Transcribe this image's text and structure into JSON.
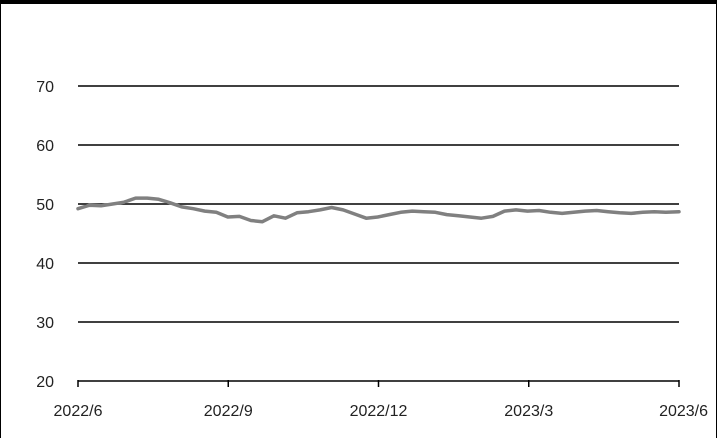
{
  "chart_data": {
    "type": "line",
    "title": "",
    "xlabel": "",
    "ylabel": "",
    "ylim": [
      20,
      75
    ],
    "yticks": [
      20,
      30,
      40,
      50,
      60,
      70
    ],
    "xticks": [
      "2022/6",
      "2022/9",
      "2022/12",
      "2023/3",
      "2023/6"
    ],
    "xlim": [
      "2022-06-01",
      "2023-06-01"
    ],
    "grid": "horizontal",
    "legend": "none",
    "series": [
      {
        "color": "#808080",
        "x": [
          "2022-06-01",
          "2022-06-08",
          "2022-06-15",
          "2022-06-22",
          "2022-06-29",
          "2022-07-06",
          "2022-07-13",
          "2022-07-20",
          "2022-07-27",
          "2022-08-03",
          "2022-08-10",
          "2022-08-17",
          "2022-08-24",
          "2022-08-31",
          "2022-09-07",
          "2022-09-14",
          "2022-09-21",
          "2022-09-28",
          "2022-10-05",
          "2022-10-12",
          "2022-10-19",
          "2022-10-26",
          "2022-11-02",
          "2022-11-09",
          "2022-11-16",
          "2022-11-23",
          "2022-11-30",
          "2022-12-07",
          "2022-12-14",
          "2022-12-21",
          "2022-12-28",
          "2023-01-04",
          "2023-01-11",
          "2023-01-18",
          "2023-01-25",
          "2023-02-01",
          "2023-02-08",
          "2023-02-15",
          "2023-02-22",
          "2023-03-01",
          "2023-03-08",
          "2023-03-15",
          "2023-03-22",
          "2023-03-29",
          "2023-04-05",
          "2023-04-12",
          "2023-04-19",
          "2023-04-26",
          "2023-05-03",
          "2023-05-10",
          "2023-05-17",
          "2023-05-24",
          "2023-06-01"
        ],
        "values": [
          49.2,
          49.8,
          49.7,
          50.0,
          50.3,
          51.0,
          51.0,
          50.8,
          50.2,
          49.5,
          49.2,
          48.8,
          48.6,
          47.8,
          47.9,
          47.2,
          47.0,
          48.0,
          47.6,
          48.5,
          48.7,
          49.0,
          49.4,
          49.0,
          48.3,
          47.6,
          47.8,
          48.2,
          48.6,
          48.8,
          48.7,
          48.6,
          48.2,
          48.0,
          47.8,
          47.6,
          47.9,
          48.8,
          49.0,
          48.8,
          48.9,
          48.6,
          48.4,
          48.6,
          48.8,
          48.9,
          48.7,
          48.5,
          48.4,
          48.6,
          48.7,
          48.6,
          48.7
        ]
      }
    ]
  }
}
